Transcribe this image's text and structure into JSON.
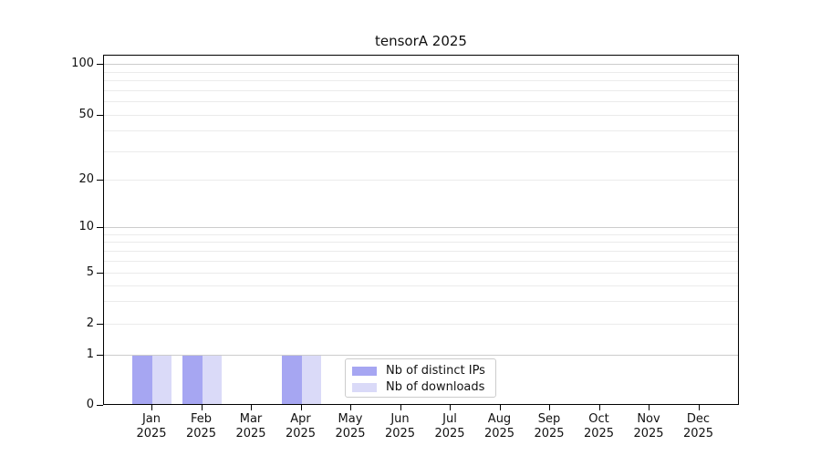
{
  "chart_data": {
    "type": "bar",
    "title": "tensorA 2025",
    "categories": [
      "Jan",
      "Feb",
      "Mar",
      "Apr",
      "May",
      "Jun",
      "Jul",
      "Aug",
      "Sep",
      "Oct",
      "Nov",
      "Dec"
    ],
    "x_year_label": "2025",
    "series": [
      {
        "name": "Nb of distinct IPs",
        "color": "#a6a6f2",
        "values": [
          1,
          1,
          0,
          1,
          0,
          0,
          0,
          0,
          0,
          0,
          0,
          0
        ]
      },
      {
        "name": "Nb of downloads",
        "color": "#dadaf8",
        "values": [
          1,
          1,
          0,
          1,
          0,
          0,
          0,
          0,
          0,
          0,
          0,
          0
        ]
      }
    ],
    "y_axis": {
      "scale": "symlog",
      "range": [
        0,
        100
      ],
      "tick_labels": [
        0,
        1,
        2,
        5,
        10,
        20,
        50,
        100
      ],
      "major_gridlines": [
        1,
        10,
        100
      ],
      "minor_gridlines": [
        2,
        3,
        4,
        5,
        6,
        7,
        8,
        9,
        20,
        30,
        40,
        50,
        60,
        70,
        80,
        90
      ]
    },
    "legend": {
      "position": "lower center",
      "entries": [
        "Nb of distinct IPs",
        "Nb of downloads"
      ]
    },
    "style": {
      "grid_major_color": "#cccccc",
      "grid_minor_color": "#ebebeb",
      "spine_color": "#000000",
      "background": "#ffffff"
    }
  }
}
